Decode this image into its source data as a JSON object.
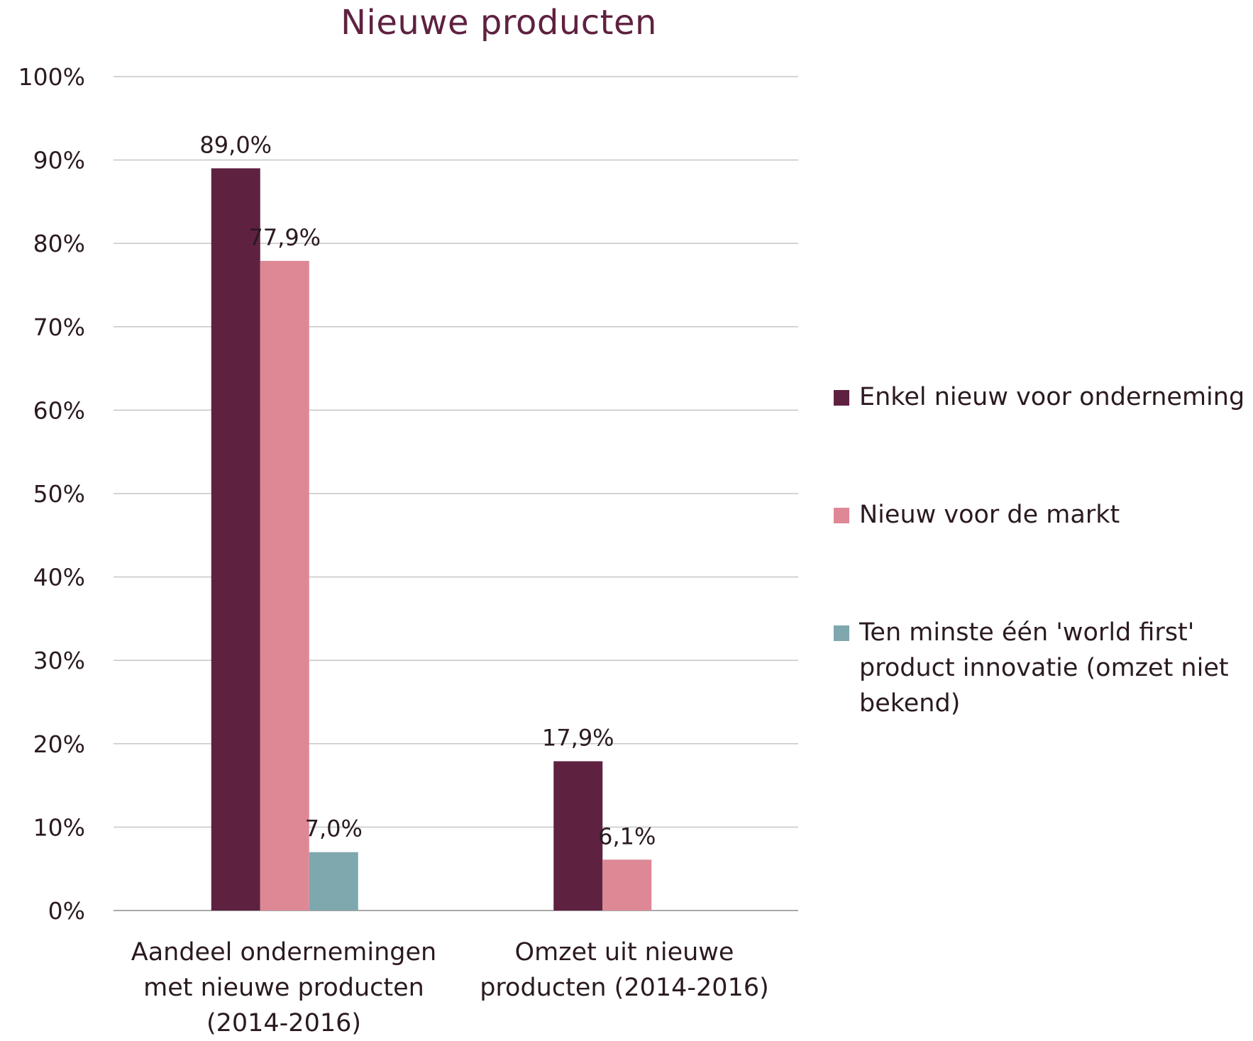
{
  "chart_data": {
    "type": "bar",
    "title": "Nieuwe producten",
    "categories": [
      "Aandeel ondernemingen met nieuwe producten (2014-2016)",
      "Omzet uit nieuwe producten (2014-2016)"
    ],
    "series": [
      {
        "name": "Enkel nieuw voor onderneming",
        "values": [
          89.0,
          17.9
        ],
        "labels": [
          "89,0%",
          "17,9%"
        ],
        "color": "#5f2140"
      },
      {
        "name": "Nieuw voor de markt",
        "values": [
          77.9,
          6.1
        ],
        "labels": [
          "77,9%",
          "6,1%"
        ],
        "color": "#de8896"
      },
      {
        "name": "Ten minste één 'world first' product innovatie (omzet niet bekend)",
        "values": [
          7.0,
          null
        ],
        "labels": [
          "7,0%",
          ""
        ],
        "color": "#7ea7ae"
      }
    ],
    "ylim": [
      0,
      100
    ],
    "yticks": [
      "0%",
      "10%",
      "20%",
      "30%",
      "40%",
      "50%",
      "60%",
      "70%",
      "80%",
      "90%",
      "100%"
    ],
    "grid": true,
    "legend_position": "right"
  }
}
